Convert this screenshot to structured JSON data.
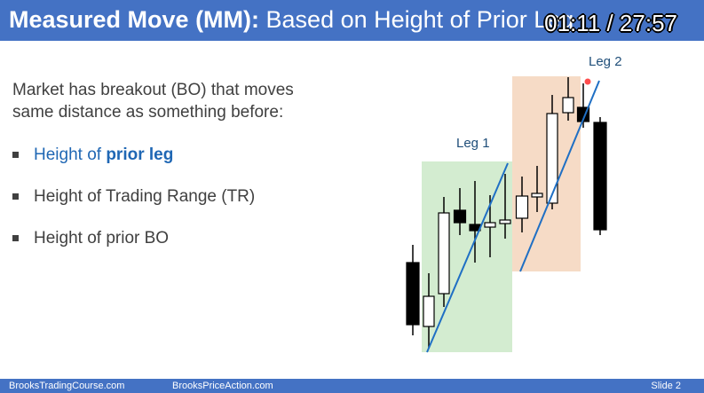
{
  "header": {
    "title_bold": "Measured Move (MM):",
    "title_rest": " Based on Height of Prior Leg",
    "timer": "01:11 / 27:57"
  },
  "intro": "Market has breakout (BO) that moves same distance as something before:",
  "bullets": [
    {
      "pre": "Height of ",
      "strong": "prior leg"
    },
    {
      "text": "Height of Trading Range (TR)"
    },
    {
      "text": "Height of prior BO"
    }
  ],
  "chart": {
    "labels": {
      "leg1": "Leg 1",
      "leg2": "Leg 2"
    },
    "colors": {
      "leg1_box": "#d3ecd0",
      "leg2_box": "#f6dbc6",
      "trendline": "#1f6fc4",
      "bull_body": "#ffffff",
      "bear_body": "#000000",
      "marker": "#ff4d4d"
    },
    "candles": [
      {
        "name": "candle-1",
        "bull": false
      },
      {
        "name": "candle-2",
        "bull": true
      },
      {
        "name": "candle-3",
        "bull": true
      },
      {
        "name": "candle-4",
        "bull": false
      },
      {
        "name": "candle-5",
        "bull": false
      },
      {
        "name": "candle-6",
        "bull": true
      },
      {
        "name": "candle-7",
        "bull": true
      },
      {
        "name": "candle-8",
        "bull": true
      },
      {
        "name": "candle-9",
        "bull": true
      },
      {
        "name": "candle-10",
        "bull": true
      },
      {
        "name": "candle-11",
        "bull": true
      },
      {
        "name": "candle-12",
        "bull": false
      },
      {
        "name": "candle-13",
        "bull": false
      }
    ]
  },
  "footer": {
    "left": "BrooksTradingCourse.com",
    "center": "BrooksPriceAction.com",
    "right": "Slide  2"
  }
}
